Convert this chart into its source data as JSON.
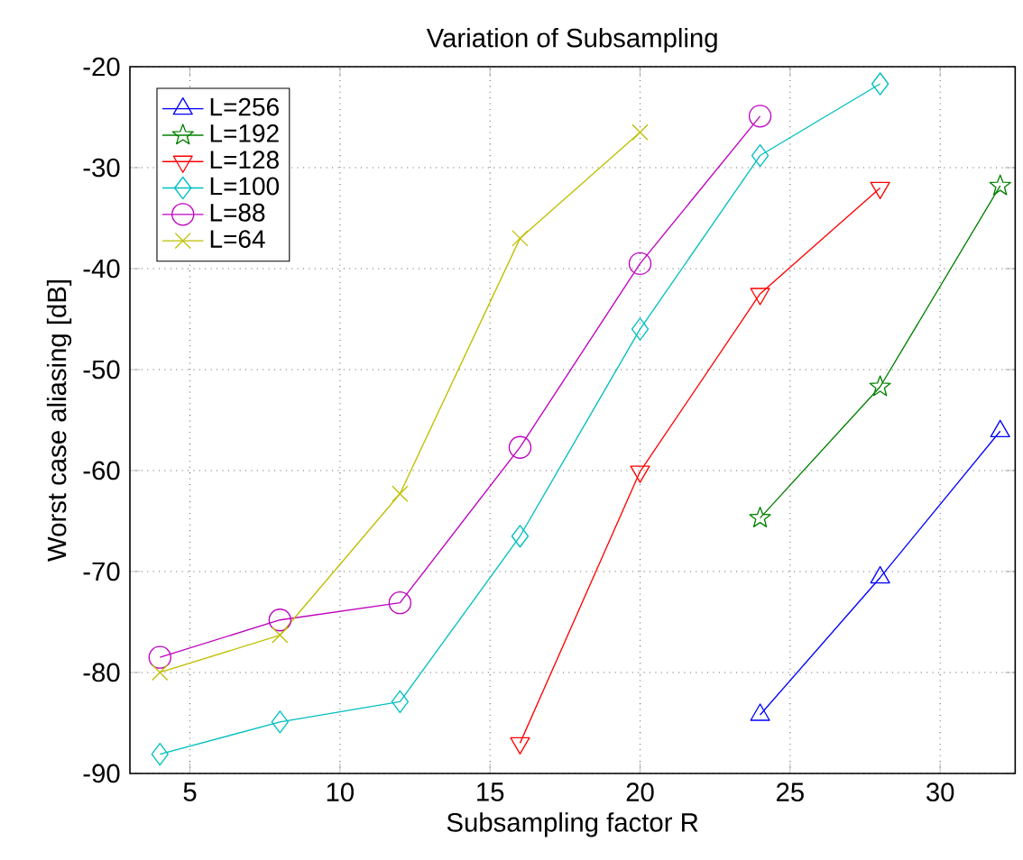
{
  "chart_data": {
    "type": "line",
    "title": "Variation of Subsampling",
    "xlabel": "Subsampling factor R",
    "ylabel": "Worst case aliasing [dB]",
    "xlim": [
      3,
      32.5
    ],
    "ylim": [
      -90,
      -20
    ],
    "xticks": [
      5,
      10,
      15,
      20,
      25,
      30
    ],
    "yticks": [
      -90,
      -80,
      -70,
      -60,
      -50,
      -40,
      -30,
      -20
    ],
    "grid": true,
    "legend": "top left",
    "line_style": "solid",
    "series": [
      {
        "name": "L=256",
        "color": "#0000ff",
        "marker": "triangle",
        "x": [
          24,
          28,
          32
        ],
        "values": [
          -84.2,
          -70.6,
          -56.1
        ]
      },
      {
        "name": "L=192",
        "color": "#008000",
        "marker": "star",
        "x": [
          24,
          28,
          32
        ],
        "values": [
          -64.7,
          -51.7,
          -31.8
        ]
      },
      {
        "name": "L=128",
        "color": "#ff0000",
        "marker": "triangle-down",
        "x": [
          16,
          20,
          24,
          28
        ],
        "values": [
          -87.0,
          -60.1,
          -42.5,
          -32.0
        ]
      },
      {
        "name": "L=100",
        "color": "#00bfbf",
        "marker": "diamond",
        "x": [
          4,
          8,
          12,
          16,
          20,
          24,
          28
        ],
        "values": [
          -88.1,
          -84.9,
          -82.9,
          -66.5,
          -46.0,
          -28.8,
          -21.7
        ]
      },
      {
        "name": "L=88",
        "color": "#bf00bf",
        "marker": "circle",
        "x": [
          4,
          8,
          12,
          16,
          20,
          24
        ],
        "values": [
          -78.5,
          -74.8,
          -73.1,
          -57.7,
          -39.5,
          -24.9
        ]
      },
      {
        "name": "L=64",
        "color": "#bfbf00",
        "marker": "cross",
        "x": [
          4,
          8,
          12,
          16,
          20
        ],
        "values": [
          -80.0,
          -76.3,
          -62.3,
          -37.0,
          -26.5
        ]
      }
    ]
  }
}
